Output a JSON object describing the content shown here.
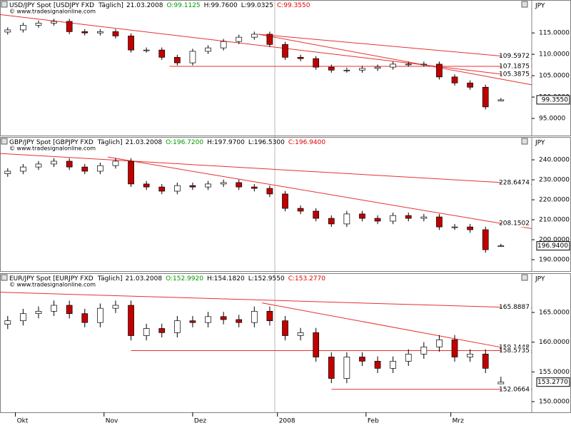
{
  "chart_data": [
    {
      "type": "candlestick",
      "symbol": "USD/JPY Spot [USDJPY FXD",
      "interval": "Täglich]",
      "date": "21.03.2008",
      "ohlc_labels": [
        "O:99.1125",
        "H:99.7600",
        "L:99.0325",
        "C:99.3550"
      ],
      "header_colors": [
        "#009900",
        "#000000",
        "#000000",
        "#e00000"
      ],
      "source": "© www.tradesignalonline.com",
      "unit": "JPY",
      "up_color": "#ffffff",
      "down_color": "#c00000",
      "line_color": "#e83030",
      "xlim": [
        0,
        138
      ],
      "ylim": [
        91,
        119.7
      ],
      "yticks": [
        {
          "value": 95,
          "label": "95.0000"
        },
        {
          "value": 100,
          "label": "100.0000"
        },
        {
          "value": 105,
          "label": "105.0000"
        },
        {
          "value": 110,
          "label": "110.0000"
        },
        {
          "value": 115,
          "label": "115.0000"
        }
      ],
      "last": {
        "value": 99.355,
        "label": "99.3550"
      },
      "x": [
        2,
        6,
        10,
        14,
        18,
        22,
        26,
        30,
        34,
        38,
        42,
        46,
        50,
        54,
        58,
        62,
        66,
        70,
        74,
        78,
        82,
        86,
        90,
        94,
        98,
        102,
        106,
        110,
        114,
        118,
        122,
        126,
        130
      ],
      "open": [
        115.2,
        115.7,
        116.8,
        117.3,
        117.7,
        115.3,
        115.0,
        115.3,
        114.3,
        111.0,
        111.0,
        109.3,
        108.0,
        110.7,
        111.5,
        113.0,
        114.0,
        114.7,
        112.3,
        109.3,
        109.0,
        107.0,
        106.3,
        106.3,
        106.7,
        107.0,
        107.7,
        107.7,
        107.7,
        104.7,
        103.3,
        102.3,
        99.1125
      ],
      "high": [
        116.3,
        117.4,
        117.9,
        118.3,
        118.3,
        115.9,
        115.9,
        115.9,
        114.9,
        111.6,
        111.6,
        109.9,
        111.3,
        112.1,
        113.6,
        114.6,
        115.3,
        115.3,
        112.9,
        109.9,
        109.6,
        107.6,
        106.9,
        107.3,
        107.6,
        108.3,
        108.3,
        108.3,
        108.3,
        105.3,
        103.9,
        102.9,
        99.76
      ],
      "low": [
        114.6,
        115.1,
        116.2,
        116.7,
        114.7,
        114.4,
        114.4,
        113.7,
        110.4,
        110.4,
        108.7,
        107.4,
        107.4,
        110.1,
        110.9,
        112.4,
        113.4,
        111.7,
        108.7,
        108.4,
        106.4,
        105.7,
        105.7,
        105.7,
        106.1,
        106.4,
        107.1,
        107.1,
        104.1,
        102.7,
        101.7,
        97.1,
        99.0325
      ],
      "close": [
        115.7,
        116.8,
        117.3,
        117.7,
        115.3,
        115.0,
        115.3,
        114.3,
        111.0,
        111.0,
        109.3,
        108.0,
        110.7,
        111.5,
        113.0,
        114.0,
        114.7,
        112.3,
        109.3,
        109.0,
        107.0,
        106.3,
        106.3,
        106.7,
        107.0,
        107.7,
        107.7,
        107.7,
        104.7,
        103.3,
        102.3,
        97.7,
        99.355
      ],
      "trendlines": [
        {
          "x": [
            0,
            130
          ],
          "y": [
            119.3,
            105.3875
          ],
          "labeled": true
        },
        {
          "x": [
            67,
            130
          ],
          "y": [
            114.7,
            109.5972
          ],
          "labeled": true
        },
        {
          "x": [
            67,
            130
          ],
          "y": [
            114.7,
            104.2
          ],
          "labeled": false
        },
        {
          "x": [
            44,
            130
          ],
          "y": [
            107.1875,
            107.1875
          ],
          "labeled": true
        }
      ]
    },
    {
      "type": "candlestick",
      "symbol": "GBP/JPY Spot [GBPJPY FXD",
      "interval": "Täglich]",
      "date": "21.03.2008",
      "ohlc_labels": [
        "O:196.7200",
        "H:197.9700",
        "L:196.5300",
        "C:196.9400"
      ],
      "header_colors": [
        "#009900",
        "#000000",
        "#000000",
        "#e00000"
      ],
      "source": "© www.tradesignalonline.com",
      "unit": "JPY",
      "up_color": "#ffffff",
      "down_color": "#c00000",
      "line_color": "#e83030",
      "xlim": [
        0,
        138
      ],
      "ylim": [
        184.3,
        246.8
      ],
      "yticks": [
        {
          "value": 190,
          "label": "190.0000"
        },
        {
          "value": 200,
          "label": "200.0000"
        },
        {
          "value": 210,
          "label": "210.0000"
        },
        {
          "value": 220,
          "label": "220.0000"
        },
        {
          "value": 230,
          "label": "230.0000"
        },
        {
          "value": 240,
          "label": "240.0000"
        }
      ],
      "last": {
        "value": 196.94,
        "label": "196.9400"
      },
      "x": [
        2,
        6,
        10,
        14,
        18,
        22,
        26,
        30,
        34,
        38,
        42,
        46,
        50,
        54,
        58,
        62,
        66,
        70,
        74,
        78,
        82,
        86,
        90,
        94,
        98,
        102,
        106,
        110,
        114,
        118,
        122,
        126,
        130
      ],
      "open": [
        233.0,
        234.3,
        236.4,
        237.9,
        239.3,
        236.4,
        234.3,
        237.1,
        239.3,
        227.9,
        226.4,
        224.3,
        227.1,
        226.4,
        227.9,
        228.6,
        226.4,
        225.7,
        222.9,
        215.7,
        214.3,
        210.7,
        207.9,
        212.9,
        210.7,
        209.3,
        212.1,
        210.7,
        211.4,
        206.4,
        206.4,
        205.0,
        196.72
      ],
      "high": [
        235.8,
        237.9,
        239.4,
        240.8,
        240.8,
        237.9,
        238.6,
        240.8,
        240.8,
        229.4,
        227.9,
        228.6,
        228.6,
        229.4,
        230.1,
        230.1,
        227.9,
        227.2,
        224.4,
        217.2,
        215.8,
        212.2,
        214.4,
        214.4,
        212.2,
        213.6,
        213.6,
        212.9,
        212.9,
        207.9,
        207.9,
        206.5,
        197.97
      ],
      "low": [
        231.5,
        232.8,
        234.9,
        236.4,
        234.9,
        232.8,
        232.8,
        235.6,
        226.4,
        224.9,
        222.8,
        222.8,
        224.9,
        224.9,
        226.4,
        224.9,
        224.2,
        221.4,
        214.2,
        212.8,
        209.2,
        206.4,
        206.4,
        209.2,
        207.8,
        207.8,
        209.2,
        209.2,
        204.9,
        204.9,
        203.5,
        193.5,
        196.53
      ],
      "close": [
        234.3,
        236.4,
        237.9,
        239.3,
        236.4,
        234.3,
        237.1,
        239.3,
        227.9,
        226.4,
        224.3,
        227.1,
        226.4,
        227.9,
        228.6,
        226.4,
        225.7,
        222.9,
        215.7,
        214.3,
        210.7,
        207.9,
        212.9,
        210.7,
        209.3,
        212.1,
        210.7,
        211.4,
        206.4,
        206.4,
        205.0,
        195.0,
        196.94
      ],
      "trendlines": [
        {
          "x": [
            0,
            130
          ],
          "y": [
            243.2,
            228.6474
          ],
          "labeled": true
        },
        {
          "x": [
            28,
            130
          ],
          "y": [
            241.4,
            208.1502
          ],
          "labeled": true
        }
      ]
    },
    {
      "type": "candlestick",
      "symbol": "EUR/JPY Spot [EURJPY FXD",
      "interval": "Täglich]",
      "date": "21.03.2008",
      "ohlc_labels": [
        "O:152.9920",
        "H:154.1820",
        "L:152.9550",
        "C:153.2770"
      ],
      "header_colors": [
        "#009900",
        "#000000",
        "#000000",
        "#e00000"
      ],
      "source": "© www.tradesignalonline.com",
      "unit": "JPY",
      "up_color": "#ffffff",
      "down_color": "#c00000",
      "line_color": "#e83030",
      "xlim": [
        0,
        138
      ],
      "ylim": [
        148.2,
        169.8
      ],
      "yticks": [
        {
          "value": 150,
          "label": "150.0000"
        },
        {
          "value": 155,
          "label": "155.0000"
        },
        {
          "value": 160,
          "label": "160.0000"
        },
        {
          "value": 165,
          "label": "165.0000"
        }
      ],
      "xticks": [
        {
          "value": 4,
          "label": "Okt"
        },
        {
          "value": 27,
          "label": "Nov"
        },
        {
          "value": 50,
          "label": "Dez"
        },
        {
          "value": 72,
          "label": "2008"
        },
        {
          "value": 95,
          "label": "Feb"
        },
        {
          "value": 117,
          "label": "Mrz"
        }
      ],
      "last": {
        "value": 153.277,
        "label": "153.2770"
      },
      "x": [
        2,
        6,
        10,
        14,
        18,
        22,
        26,
        30,
        34,
        38,
        42,
        46,
        50,
        54,
        58,
        62,
        66,
        70,
        74,
        78,
        82,
        86,
        90,
        94,
        98,
        102,
        106,
        110,
        114,
        118,
        122,
        126,
        130
      ],
      "open": [
        163.0,
        163.6,
        164.8,
        165.2,
        166.2,
        164.8,
        163.3,
        165.7,
        166.2,
        161.1,
        162.3,
        161.6,
        163.6,
        163.3,
        164.3,
        163.8,
        163.3,
        165.2,
        163.6,
        161.1,
        161.6,
        157.5,
        153.9,
        157.5,
        156.8,
        155.6,
        156.8,
        158.0,
        159.2,
        160.4,
        157.5,
        158.0,
        152.992
      ],
      "high": [
        164.4,
        165.6,
        166.0,
        167.0,
        167.0,
        165.6,
        166.5,
        167.0,
        167.0,
        163.1,
        163.1,
        164.4,
        164.4,
        165.1,
        165.1,
        164.6,
        166.0,
        166.0,
        164.4,
        162.4,
        162.4,
        158.3,
        158.3,
        158.3,
        157.6,
        157.6,
        158.8,
        160.0,
        161.2,
        161.2,
        158.8,
        158.8,
        154.182
      ],
      "low": [
        162.2,
        162.8,
        164.0,
        164.4,
        164.0,
        162.5,
        162.5,
        164.9,
        160.3,
        160.3,
        160.8,
        160.8,
        162.5,
        162.5,
        163.0,
        162.5,
        162.5,
        162.8,
        160.3,
        160.3,
        156.7,
        153.1,
        153.1,
        156.0,
        154.8,
        154.8,
        156.0,
        157.2,
        158.4,
        156.7,
        156.7,
        154.8,
        152.955
      ],
      "close": [
        163.6,
        164.8,
        165.2,
        166.2,
        164.8,
        163.3,
        165.7,
        166.2,
        161.1,
        162.3,
        161.6,
        163.6,
        163.3,
        164.3,
        163.8,
        163.3,
        165.2,
        163.6,
        161.1,
        161.6,
        157.5,
        153.9,
        157.5,
        156.8,
        155.6,
        156.8,
        158.0,
        159.2,
        160.4,
        157.5,
        158.0,
        155.6,
        153.277
      ],
      "trendlines": [
        {
          "x": [
            0,
            130
          ],
          "y": [
            168.4,
            165.8887
          ],
          "labeled": true
        },
        {
          "x": [
            68,
            130
          ],
          "y": [
            166.6,
            159.1448
          ],
          "labeled": true
        },
        {
          "x": [
            34,
            130
          ],
          "y": [
            158.5735,
            158.5735
          ],
          "labeled": true
        },
        {
          "x": [
            86,
            130
          ],
          "y": [
            152.0664,
            152.0664
          ],
          "labeled": true
        }
      ]
    }
  ]
}
